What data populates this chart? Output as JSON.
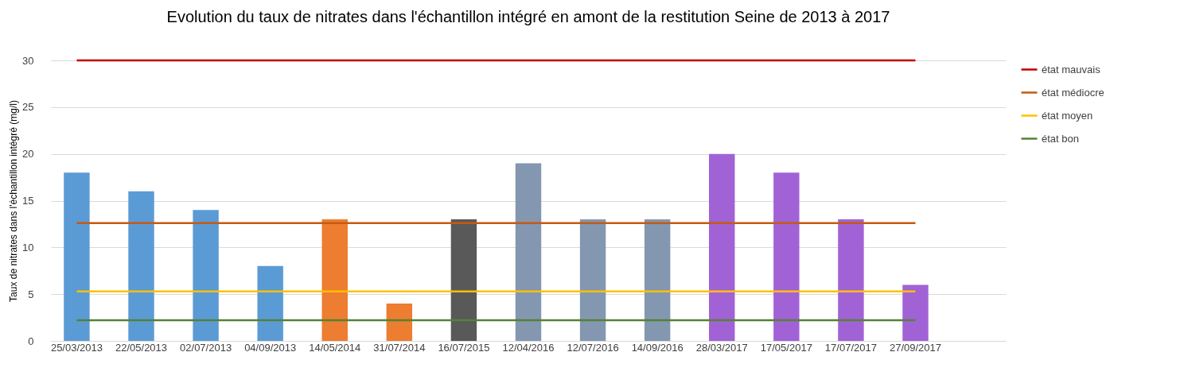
{
  "chart_data": {
    "type": "bar",
    "title": "Evolution du taux de nitrates dans l'échantillon intégré en amont de la restitution Seine de 2013 à 2017",
    "ylabel": "Taux de nitrates dans l'échantillon intégré (mg/l)",
    "categories": [
      "25/03/2013",
      "22/05/2013",
      "02/07/2013",
      "04/09/2013",
      "14/05/2014",
      "31/07/2014",
      "16/07/2015",
      "12/04/2016",
      "12/07/2016",
      "14/09/2016",
      "28/03/2017",
      "17/05/2017",
      "17/07/2017",
      "27/09/2017",
      null
    ],
    "values": [
      18,
      16,
      14,
      8,
      13,
      4,
      13,
      19,
      13,
      13,
      20,
      18,
      13,
      6,
      null
    ],
    "colors": [
      "#5b9bd5",
      "#5b9bd5",
      "#5b9bd5",
      "#5b9bd5",
      "#ed7d31",
      "#ed7d31",
      "#595959",
      "#8497b0",
      "#8497b0",
      "#8497b0",
      "#a162d6",
      "#a162d6",
      "#a162d6",
      "#a162d6",
      "#a162d6"
    ],
    "series": [
      {
        "name": "état mauvais",
        "type": "line",
        "color": "#c00000",
        "values": [
          30,
          30,
          30,
          30,
          30,
          30,
          30,
          30,
          30,
          30,
          30,
          30,
          30,
          30,
          null
        ]
      },
      {
        "name": "état médiocre",
        "type": "line",
        "color": "#c55a11",
        "values": [
          12.6,
          12.6,
          12.6,
          12.6,
          12.6,
          12.6,
          12.6,
          12.6,
          12.6,
          12.6,
          12.6,
          12.6,
          12.6,
          12.6,
          null
        ]
      },
      {
        "name": " état moyen",
        "type": "line",
        "color": "#ffc000",
        "values": [
          5.3,
          5.3,
          5.3,
          5.3,
          5.3,
          5.3,
          5.3,
          5.3,
          5.3,
          5.3,
          5.3,
          5.3,
          5.3,
          5.3,
          null
        ]
      },
      {
        "name": "état bon",
        "type": "line",
        "color": "#548235",
        "values": [
          2.2,
          2.2,
          2.2,
          2.2,
          2.2,
          2.2,
          2.2,
          2.2,
          2.2,
          2.2,
          2.2,
          2.2,
          2.2,
          2.2,
          null
        ]
      }
    ],
    "ylim": [
      0,
      30
    ],
    "yticks": [
      0,
      5,
      10,
      15,
      20,
      25,
      30
    ],
    "grid": "y",
    "legend": "right"
  }
}
